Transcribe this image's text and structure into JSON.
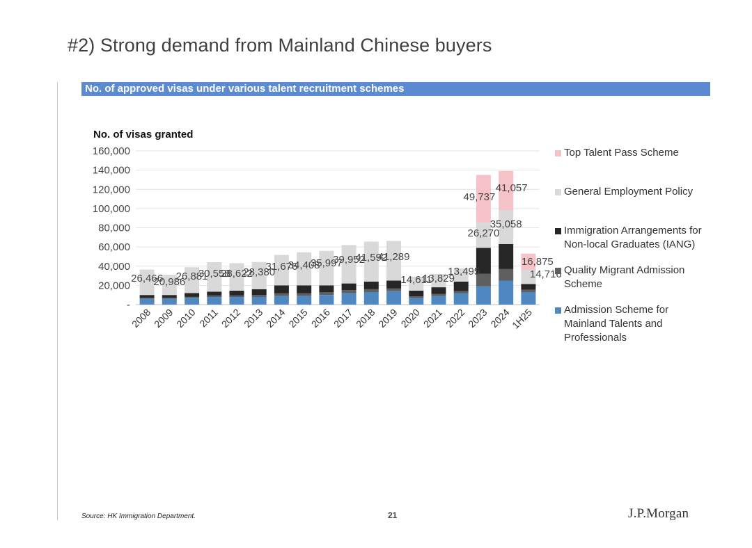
{
  "page": {
    "title": "#2) Strong demand from Mainland Chinese buyers",
    "section_title": "No. of approved visas under various talent recruitment schemes"
  },
  "chart_data": {
    "type": "bar",
    "stacked": true,
    "ylabel": "No. of visas granted",
    "ylim": [
      0,
      160000
    ],
    "y_ticks": [
      "-",
      "20,000",
      "40,000",
      "60,000",
      "80,000",
      "100,000",
      "120,000",
      "140,000",
      "160,000"
    ],
    "categories": [
      "2008",
      "2009",
      "2010",
      "2011",
      "2012",
      "2013",
      "2014",
      "2015",
      "2016",
      "2017",
      "2018",
      "2019",
      "2020",
      "2021",
      "2022",
      "2023",
      "2024",
      "1H25"
    ],
    "series": [
      {
        "name": "Admission Scheme for Mainland Talents and Professionals",
        "color": "#4f87c0",
        "values": [
          6000,
          6000,
          7000,
          8000,
          8000,
          8000,
          9000,
          9000,
          10000,
          12000,
          13000,
          14000,
          7000,
          9000,
          12000,
          19000,
          25000,
          13000
        ]
      },
      {
        "name": "Quality Migrant Admission Scheme",
        "color": "#5f5f5f",
        "values": [
          1000,
          1000,
          1000,
          1500,
          1500,
          2000,
          3000,
          3000,
          3000,
          3000,
          3000,
          3000,
          1500,
          2000,
          2000,
          13000,
          12000,
          2500
        ]
      },
      {
        "name": "Immigration Arrangements for Non-local Graduates (IANG)",
        "color": "#262626",
        "values": [
          3000,
          3000,
          4000,
          4000,
          5000,
          6000,
          8000,
          8000,
          7000,
          7000,
          8000,
          8000,
          6000,
          7000,
          10000,
          27000,
          26000,
          6000
        ]
      },
      {
        "name": "General Employment Policy",
        "color": "#d9d9d9",
        "values": [
          26466,
          20986,
          26881,
          30558,
          28622,
          28380,
          31676,
          34408,
          35997,
          39952,
          41592,
          41289,
          14611,
          13829,
          13495,
          26270,
          35058,
          14716
        ]
      },
      {
        "name": "Top Talent Pass Scheme",
        "color": "#f5c3c7",
        "values": [
          0,
          0,
          0,
          0,
          0,
          0,
          0,
          0,
          0,
          0,
          0,
          0,
          0,
          0,
          0,
          49737,
          41057,
          16875
        ]
      }
    ],
    "data_labels": {
      "general_employment_policy": [
        "26,466",
        "20,986",
        "26,881",
        "30,558",
        "28,622",
        "28,380",
        "31,676",
        "34,408",
        "35,997",
        "39,952",
        "41,592",
        "41,289",
        "14,611",
        "13,829",
        "13,495",
        "26,270",
        "35,058",
        "14,716"
      ],
      "top_talent_pass": [
        "",
        "",
        "",
        "",
        "",
        "",
        "",
        "",
        "",
        "",
        "",
        "",
        "",
        "",
        "",
        "49,737",
        "41,057",
        "16,875"
      ]
    }
  },
  "legend": [
    {
      "label": "Top Talent Pass Scheme",
      "color": "#f5c3c7"
    },
    {
      "label": "General Employment Policy",
      "color": "#d9d9d9"
    },
    {
      "label": "Immigration Arrangements for Non-local Graduates (IANG)",
      "color": "#262626"
    },
    {
      "label": "Quality Migrant Admission Scheme",
      "color": "#5f5f5f"
    },
    {
      "label": "Admission Scheme for Mainland Talents and Professionals",
      "color": "#4f87c0"
    }
  ],
  "footer": {
    "source": "Source: HK Immigration Department.",
    "page_number": "21",
    "logo": "J.P.Morgan"
  }
}
